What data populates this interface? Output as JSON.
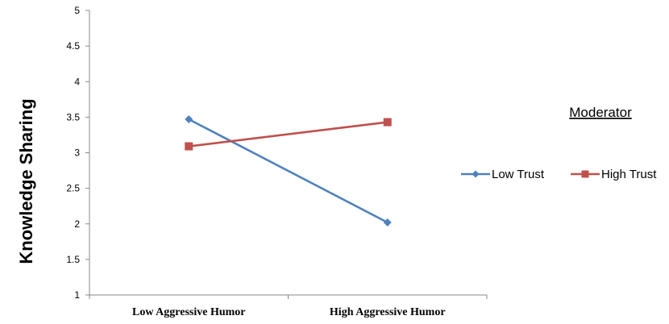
{
  "chart_data": {
    "type": "line",
    "title": "",
    "xlabel": "",
    "ylabel": "Knowledge Sharing",
    "categories": [
      "Low Aggressive Humor",
      "High Aggressive Humor"
    ],
    "ylim": [
      1,
      5
    ],
    "yticks": [
      "1",
      "1.5",
      "2",
      "2.5",
      "3",
      "3.5",
      "4",
      "4.5",
      "5"
    ],
    "grid": false,
    "legend_title": "Moderator",
    "legend_position": "right",
    "series": [
      {
        "name": "Low Trust",
        "values": [
          3.47,
          2.02
        ],
        "color": "#4F81BD",
        "marker": "diamond"
      },
      {
        "name": "High Trust",
        "values": [
          3.09,
          3.43
        ],
        "color": "#C0504D",
        "marker": "square"
      }
    ]
  }
}
